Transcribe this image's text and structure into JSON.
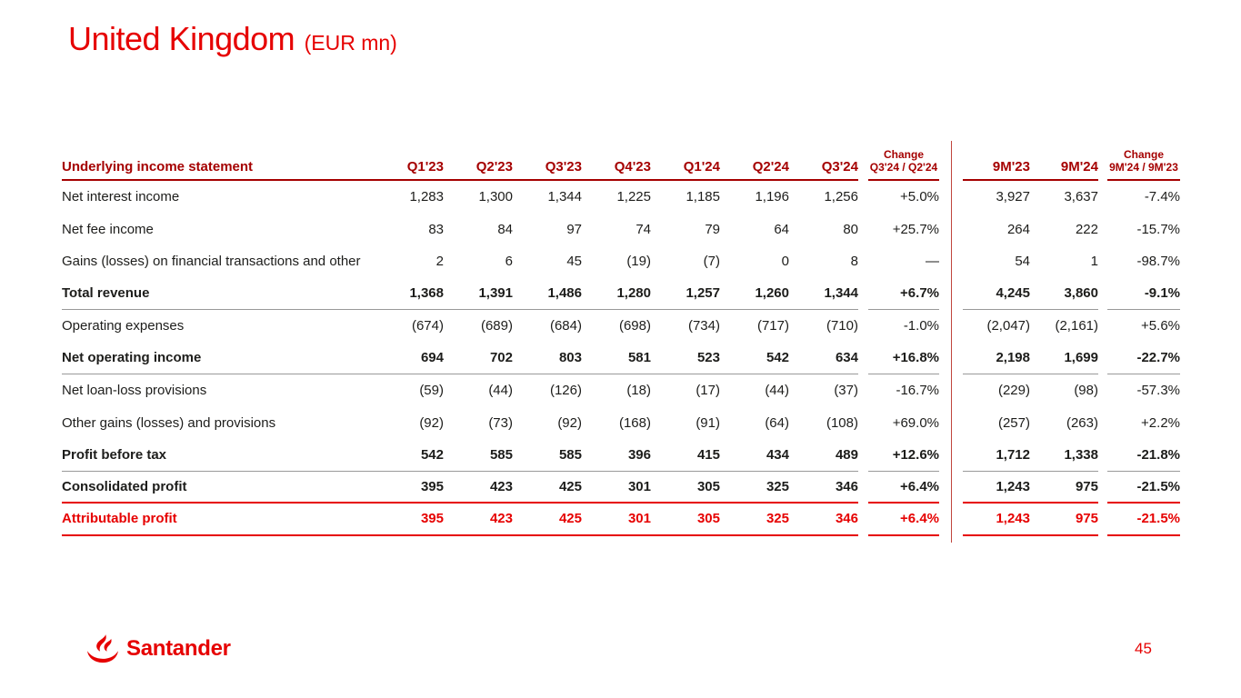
{
  "slide": {
    "title": "United Kingdom",
    "title_suffix": "(EUR mn)",
    "page_number": "45",
    "logo_text": "Santander"
  },
  "colors": {
    "accent_red": "#E60000",
    "header_dark_red": "#A50000",
    "divider_red": "#C0453C",
    "separator_gray": "#999999",
    "body_text": "#1D1D1B"
  },
  "table": {
    "header": {
      "label": "Underlying income statement",
      "quarter_cols": [
        "Q1'23",
        "Q2'23",
        "Q3'23",
        "Q4'23",
        "Q1'24",
        "Q2'24",
        "Q3'24"
      ],
      "change_word": "Change",
      "change_quarter_sub": "Q3'24 / Q2'24",
      "nine_month_cols": [
        "9M'23",
        "9M'24"
      ],
      "change_nine_month_sub": "9M'24 / 9M'23"
    },
    "rows": [
      {
        "label": "Net interest income",
        "values": [
          "1,283",
          "1,300",
          "1,344",
          "1,225",
          "1,185",
          "1,196",
          "1,256"
        ],
        "change_q": "+5.0%",
        "nine_m": [
          "3,927",
          "3,637"
        ],
        "change_9m": "-7.4%",
        "style": "normal",
        "separator": "none"
      },
      {
        "label": "Net fee income",
        "values": [
          "83",
          "84",
          "97",
          "74",
          "79",
          "64",
          "80"
        ],
        "change_q": "+25.7%",
        "nine_m": [
          "264",
          "222"
        ],
        "change_9m": "-15.7%",
        "style": "normal",
        "separator": "none"
      },
      {
        "label": "Gains (losses) on financial transactions and other",
        "values": [
          "2",
          "6",
          "45",
          "(19)",
          "(7)",
          "0",
          "8"
        ],
        "change_q": "—",
        "nine_m": [
          "54",
          "1"
        ],
        "change_9m": "-98.7%",
        "style": "normal",
        "separator": "none"
      },
      {
        "label": "Total revenue",
        "values": [
          "1,368",
          "1,391",
          "1,486",
          "1,280",
          "1,257",
          "1,260",
          "1,344"
        ],
        "change_q": "+6.7%",
        "nine_m": [
          "4,245",
          "3,860"
        ],
        "change_9m": "-9.1%",
        "style": "bold",
        "separator": "gray"
      },
      {
        "label": "Operating expenses",
        "values": [
          "(674)",
          "(689)",
          "(684)",
          "(698)",
          "(734)",
          "(717)",
          "(710)"
        ],
        "change_q": "-1.0%",
        "nine_m": [
          "(2,047)",
          "(2,161)"
        ],
        "change_9m": "+5.6%",
        "style": "normal",
        "separator": "none"
      },
      {
        "label": "Net operating income",
        "values": [
          "694",
          "702",
          "803",
          "581",
          "523",
          "542",
          "634"
        ],
        "change_q": "+16.8%",
        "nine_m": [
          "2,198",
          "1,699"
        ],
        "change_9m": "-22.7%",
        "style": "bold",
        "separator": "gray"
      },
      {
        "label": "Net loan-loss provisions",
        "values": [
          "(59)",
          "(44)",
          "(126)",
          "(18)",
          "(17)",
          "(44)",
          "(37)"
        ],
        "change_q": "-16.7%",
        "nine_m": [
          "(229)",
          "(98)"
        ],
        "change_9m": "-57.3%",
        "style": "normal",
        "separator": "none"
      },
      {
        "label": "Other gains (losses) and provisions",
        "values": [
          "(92)",
          "(73)",
          "(92)",
          "(168)",
          "(91)",
          "(64)",
          "(108)"
        ],
        "change_q": "+69.0%",
        "nine_m": [
          "(257)",
          "(263)"
        ],
        "change_9m": "+2.2%",
        "style": "normal",
        "separator": "none"
      },
      {
        "label": "Profit before tax",
        "values": [
          "542",
          "585",
          "585",
          "396",
          "415",
          "434",
          "489"
        ],
        "change_q": "+12.6%",
        "nine_m": [
          "1,712",
          "1,338"
        ],
        "change_9m": "-21.8%",
        "style": "bold",
        "separator": "gray"
      },
      {
        "label": "Consolidated profit",
        "values": [
          "395",
          "423",
          "425",
          "301",
          "305",
          "325",
          "346"
        ],
        "change_q": "+6.4%",
        "nine_m": [
          "1,243",
          "975"
        ],
        "change_9m": "-21.5%",
        "style": "bold",
        "separator": "red"
      },
      {
        "label": "Attributable profit",
        "values": [
          "395",
          "423",
          "425",
          "301",
          "305",
          "325",
          "346"
        ],
        "change_q": "+6.4%",
        "nine_m": [
          "1,243",
          "975"
        ],
        "change_9m": "-21.5%",
        "style": "bold-red",
        "separator": "red"
      }
    ]
  }
}
